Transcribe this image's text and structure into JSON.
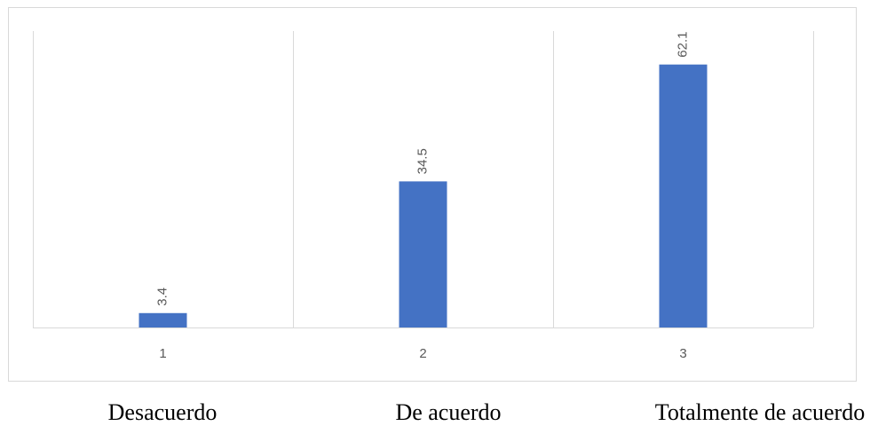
{
  "chart_data": {
    "type": "bar",
    "categories": [
      "1",
      "2",
      "3"
    ],
    "values": [
      3.4,
      34.5,
      62.1
    ],
    "ylim": [
      0,
      70
    ],
    "grid": "vertical-category-separators",
    "bar_color": "#4472C4",
    "gridline_color": "#d9d9d9",
    "label_color": "#595959"
  },
  "captions": [
    "Desacuerdo",
    "De acuerdo",
    "Totalmente de acuerdo"
  ]
}
